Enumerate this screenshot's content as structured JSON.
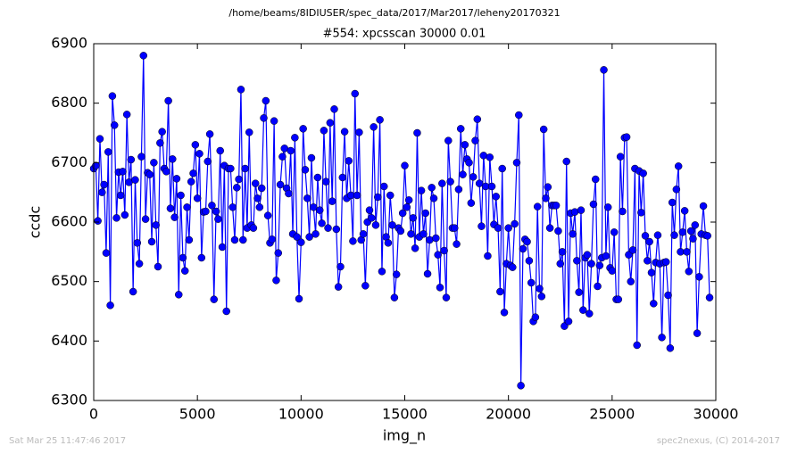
{
  "chart_data": {
    "type": "line",
    "suptitle": "/home/beams/8IDIUSER/spec_data/2017/Mar2017/leheny20170321",
    "title": "#554: xpcsscan 30000 0.01",
    "x_label": "img_n",
    "y_label": "ccdc",
    "footer_left": "Sat Mar 25 11:47:46 2017",
    "footer_right": "spec2nexus, (C) 2014-2017",
    "xlim": [
      0,
      30000
    ],
    "xticks": [
      0,
      5000,
      10000,
      15000,
      20000,
      25000,
      30000
    ],
    "ylim": [
      6300,
      6900
    ],
    "yticks": [
      6300,
      6400,
      6500,
      6600,
      6700,
      6800,
      6900
    ],
    "x": [
      0,
      100,
      200,
      300,
      400,
      500,
      600,
      700,
      800,
      900,
      1000,
      1100,
      1200,
      1300,
      1400,
      1500,
      1600,
      1700,
      1800,
      1900,
      2000,
      2100,
      2200,
      2300,
      2400,
      2500,
      2600,
      2700,
      2800,
      2900,
      3000,
      3100,
      3200,
      3300,
      3400,
      3500,
      3600,
      3700,
      3800,
      3900,
      4000,
      4100,
      4200,
      4300,
      4400,
      4500,
      4600,
      4700,
      4800,
      4900,
      5000,
      5100,
      5200,
      5300,
      5400,
      5500,
      5600,
      5700,
      5800,
      5900,
      6000,
      6100,
      6200,
      6300,
      6400,
      6500,
      6600,
      6700,
      6800,
      6900,
      7000,
      7100,
      7200,
      7300,
      7400,
      7500,
      7600,
      7700,
      7800,
      7900,
      8000,
      8100,
      8200,
      8300,
      8400,
      8500,
      8600,
      8700,
      8800,
      8900,
      9000,
      9100,
      9200,
      9300,
      9400,
      9500,
      9600,
      9700,
      9800,
      9900,
      10000,
      10100,
      10200,
      10300,
      10400,
      10500,
      10600,
      10700,
      10800,
      10900,
      11000,
      11100,
      11200,
      11300,
      11400,
      11500,
      11600,
      11700,
      11800,
      11900,
      12000,
      12100,
      12200,
      12300,
      12400,
      12500,
      12600,
      12700,
      12800,
      12900,
      13000,
      13100,
      13200,
      13300,
      13400,
      13500,
      13600,
      13700,
      13800,
      13900,
      14000,
      14100,
      14200,
      14300,
      14400,
      14500,
      14600,
      14700,
      14800,
      14900,
      15000,
      15100,
      15200,
      15300,
      15400,
      15500,
      15600,
      15700,
      15800,
      15900,
      16000,
      16100,
      16200,
      16300,
      16400,
      16500,
      16600,
      16700,
      16800,
      16900,
      17000,
      17100,
      17200,
      17300,
      17400,
      17500,
      17600,
      17700,
      17800,
      17900,
      18000,
      18100,
      18200,
      18300,
      18400,
      18500,
      18600,
      18700,
      18800,
      18900,
      19000,
      19100,
      19200,
      19300,
      19400,
      19500,
      19600,
      19700,
      19800,
      19900,
      20000,
      20100,
      20200,
      20300,
      20400,
      20500,
      20600,
      20700,
      20800,
      20900,
      21000,
      21100,
      21200,
      21300,
      21400,
      21500,
      21600,
      21700,
      21800,
      21900,
      22000,
      22100,
      22200,
      22300,
      22400,
      22500,
      22600,
      22700,
      22800,
      22900,
      23000,
      23100,
      23200,
      23300,
      23400,
      23500,
      23600,
      23700,
      23800,
      23900,
      24000,
      24100,
      24200,
      24300,
      24400,
      24500,
      24600,
      24700,
      24800,
      24900,
      25000,
      25100,
      25200,
      25300,
      25400,
      25500,
      25600,
      25700,
      25800,
      25900,
      26000,
      26100,
      26200,
      26300,
      26400,
      26500,
      26600,
      26700,
      26800,
      26900,
      27000,
      27100,
      27200,
      27300,
      27400,
      27500,
      27600,
      27700,
      27800,
      27900,
      28000,
      28100,
      28200,
      28300,
      28400,
      28500,
      28600,
      28700,
      28800,
      28900,
      29000,
      29100,
      29200,
      29300,
      29400,
      29500,
      29600,
      29700
    ],
    "series": [
      {
        "color": "#0000ff",
        "values": [
          6690,
          6695,
          6602,
          6740,
          6650,
          6663,
          6548,
          6718,
          6460,
          6812,
          6763,
          6607,
          6684,
          6645,
          6685,
          6612,
          6781,
          6667,
          6705,
          6483,
          6671,
          6565,
          6530,
          6710,
          6880,
          6605,
          6683,
          6680,
          6567,
          6700,
          6595,
          6525,
          6733,
          6752,
          6690,
          6685,
          6804,
          6623,
          6706,
          6608,
          6673,
          6478,
          6645,
          6540,
          6518,
          6625,
          6570,
          6668,
          6682,
          6730,
          6640,
          6715,
          6540,
          6617,
          6618,
          6702,
          6748,
          6628,
          6470,
          6618,
          6605,
          6720,
          6558,
          6695,
          6450,
          6690,
          6690,
          6625,
          6570,
          6658,
          6672,
          6823,
          6570,
          6690,
          6590,
          6751,
          6595,
          6590,
          6665,
          6640,
          6625,
          6657,
          6775,
          6804,
          6611,
          6565,
          6571,
          6770,
          6502,
          6548,
          6663,
          6710,
          6724,
          6657,
          6648,
          6720,
          6580,
          6742,
          6575,
          6471,
          6566,
          6757,
          6688,
          6640,
          6575,
          6708,
          6625,
          6580,
          6675,
          6620,
          6598,
          6754,
          6668,
          6590,
          6767,
          6635,
          6790,
          6588,
          6491,
          6525,
          6675,
          6752,
          6640,
          6703,
          6645,
          6568,
          6816,
          6645,
          6751,
          6570,
          6580,
          6493,
          6600,
          6620,
          6607,
          6760,
          6595,
          6642,
          6772,
          6517,
          6660,
          6575,
          6565,
          6645,
          6595,
          6473,
          6512,
          6590,
          6585,
          6615,
          6695,
          6625,
          6637,
          6580,
          6607,
          6556,
          6750,
          6575,
          6653,
          6580,
          6615,
          6513,
          6570,
          6658,
          6640,
          6573,
          6545,
          6490,
          6665,
          6552,
          6473,
          6737,
          6668,
          6590,
          6590,
          6563,
          6655,
          6757,
          6680,
          6730,
          6706,
          6700,
          6632,
          6676,
          6737,
          6773,
          6665,
          6593,
          6712,
          6660,
          6543,
          6709,
          6660,
          6596,
          6643,
          6590,
          6483,
          6690,
          6448,
          6530,
          6590,
          6527,
          6524,
          6597,
          6700,
          6780,
          6325,
          6555,
          6571,
          6567,
          6535,
          6498,
          6433,
          6440,
          6626,
          6488,
          6475,
          6756,
          6640,
          6659,
          6590,
          6628,
          6628,
          6628,
          6585,
          6530,
          6550,
          6425,
          6702,
          6433,
          6615,
          6580,
          6617,
          6535,
          6482,
          6620,
          6452,
          6540,
          6545,
          6446,
          6530,
          6630,
          6672,
          6492,
          6527,
          6540,
          6856,
          6543,
          6625,
          6523,
          6518,
          6583,
          6470,
          6470,
          6710,
          6618,
          6742,
          6743,
          6545,
          6500,
          6553,
          6690,
          6393,
          6686,
          6616,
          6682,
          6577,
          6535,
          6567,
          6515,
          6463,
          6532,
          6578,
          6530,
          6406,
          6532,
          6533,
          6477,
          6388,
          6633,
          6578,
          6655,
          6694,
          6550,
          6583,
          6619,
          6550,
          6517,
          6585,
          6572,
          6595,
          6413,
          6508,
          6580,
          6627,
          6578,
          6577,
          6473
        ]
      }
    ]
  }
}
